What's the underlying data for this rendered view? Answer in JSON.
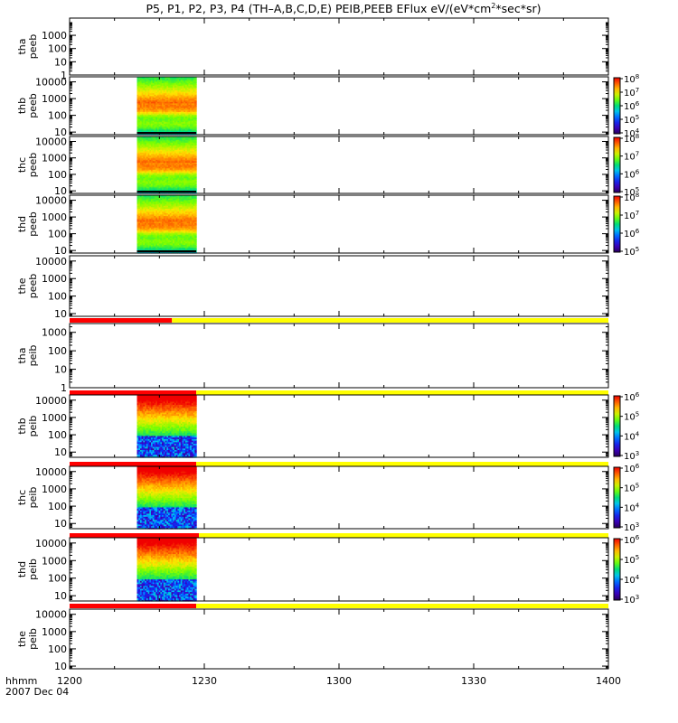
{
  "chart_data": {
    "type": "heatmap",
    "title": "P5, P1, P2, P3, P4 (TH-A,B,C,D,E) PEIB,PEEB EFlux eV/(eV*cm²*sec*sr)",
    "title_parts": [
      "P5, P1, P2, P3, P4 (TH–A,B,C,D,E) PEIB,PEEB EFlux eV/(eV*cm",
      "2",
      "*sec*sr)"
    ],
    "x_axis": {
      "label_top": "hhmm",
      "label_bottom": "2007 Dec 04",
      "ticks": [
        "1200",
        "1230",
        "1300",
        "1330",
        "1400"
      ],
      "range": [
        "12:00",
        "14:00"
      ]
    },
    "colors": {
      "red_bar": "#ff0000",
      "yellow_bar": "#ffff00"
    },
    "panels": [
      {
        "ylabel": [
          "tha",
          "peeb"
        ],
        "yticks": [
          "1",
          "10",
          "100",
          "1000"
        ],
        "ymin": 1,
        "ymax": 20000,
        "data": null,
        "cbar": null
      },
      {
        "ylabel": [
          "thb",
          "peeb"
        ],
        "yticks": [
          "10",
          "100",
          "1000",
          "10000"
        ],
        "ymin": 7,
        "ymax": 20000,
        "data": {
          "t_start": 12.25,
          "t_end": 12.47,
          "profile": "peeb",
          "seed": 3
        },
        "cbar": {
          "min_exp": 4,
          "max_exp": 8,
          "labels": [
            "10",
            "10",
            "10",
            "10",
            "10"
          ],
          "exps": [
            "4",
            "5",
            "6",
            "7",
            "8"
          ]
        }
      },
      {
        "ylabel": [
          "thc",
          "peeb"
        ],
        "yticks": [
          "10",
          "100",
          "1000",
          "10000"
        ],
        "ymin": 7,
        "ymax": 20000,
        "data": {
          "t_start": 12.25,
          "t_end": 12.47,
          "profile": "peeb",
          "seed": 5
        },
        "cbar": {
          "min_exp": 5,
          "max_exp": 8,
          "labels": [
            "10",
            "10",
            "10",
            "10"
          ],
          "exps": [
            "5",
            "6",
            "7",
            "8"
          ]
        }
      },
      {
        "ylabel": [
          "thd",
          "peeb"
        ],
        "yticks": [
          "10",
          "100",
          "1000",
          "10000"
        ],
        "ymin": 7,
        "ymax": 20000,
        "data": {
          "t_start": 12.25,
          "t_end": 12.47,
          "profile": "peeb",
          "seed": 7
        },
        "cbar": {
          "min_exp": 5,
          "max_exp": 8,
          "labels": [
            "10",
            "10",
            "10",
            "10"
          ],
          "exps": [
            "5",
            "6",
            "7",
            "8"
          ]
        }
      },
      {
        "ylabel": [
          "the",
          "peeb"
        ],
        "yticks": [
          "10",
          "100",
          "1000",
          "10000"
        ],
        "ymin": 7,
        "ymax": 20000,
        "data": null,
        "cbar": null,
        "mode_bar": {
          "red_until": 12.38
        }
      },
      {
        "ylabel": [
          "tha",
          "peib"
        ],
        "yticks": [
          "1",
          "10",
          "100",
          "1000"
        ],
        "ymin": 1,
        "ymax": 3000,
        "data": null,
        "cbar": null,
        "mode_bar": {
          "red_until": 12.47
        }
      },
      {
        "ylabel": [
          "thb",
          "peib"
        ],
        "yticks": [
          "10",
          "100",
          "1000",
          "10000"
        ],
        "ymin": 5,
        "ymax": 20000,
        "data": {
          "t_start": 12.25,
          "t_end": 12.47,
          "profile": "peib",
          "seed": 11
        },
        "cbar": {
          "min_exp": 3,
          "max_exp": 6,
          "labels": [
            "10",
            "10",
            "10",
            "10"
          ],
          "exps": [
            "3",
            "4",
            "5",
            "6"
          ]
        },
        "mode_bar": {
          "red_until": 12.47
        }
      },
      {
        "ylabel": [
          "thc",
          "peib"
        ],
        "yticks": [
          "10",
          "100",
          "1000",
          "10000"
        ],
        "ymin": 5,
        "ymax": 20000,
        "data": {
          "t_start": 12.25,
          "t_end": 12.47,
          "profile": "peib",
          "seed": 13
        },
        "cbar": {
          "min_exp": 3,
          "max_exp": 6,
          "labels": [
            "10",
            "10",
            "10",
            "10"
          ],
          "exps": [
            "3",
            "4",
            "5",
            "6"
          ]
        },
        "mode_bar": {
          "red_until": 12.48
        }
      },
      {
        "ylabel": [
          "thd",
          "peib"
        ],
        "yticks": [
          "10",
          "100",
          "1000",
          "10000"
        ],
        "ymin": 5,
        "ymax": 20000,
        "data": {
          "t_start": 12.25,
          "t_end": 12.47,
          "profile": "peib",
          "seed": 17
        },
        "cbar": {
          "min_exp": 3,
          "max_exp": 6,
          "labels": [
            "10",
            "10",
            "10",
            "10"
          ],
          "exps": [
            "3",
            "4",
            "5",
            "6"
          ]
        },
        "mode_bar": {
          "red_until": 12.47
        }
      },
      {
        "ylabel": [
          "the",
          "peib"
        ],
        "yticks": [
          "10",
          "100",
          "1000",
          "10000"
        ],
        "ymin": 7,
        "ymax": 20000,
        "data": null,
        "cbar": null
      }
    ]
  }
}
